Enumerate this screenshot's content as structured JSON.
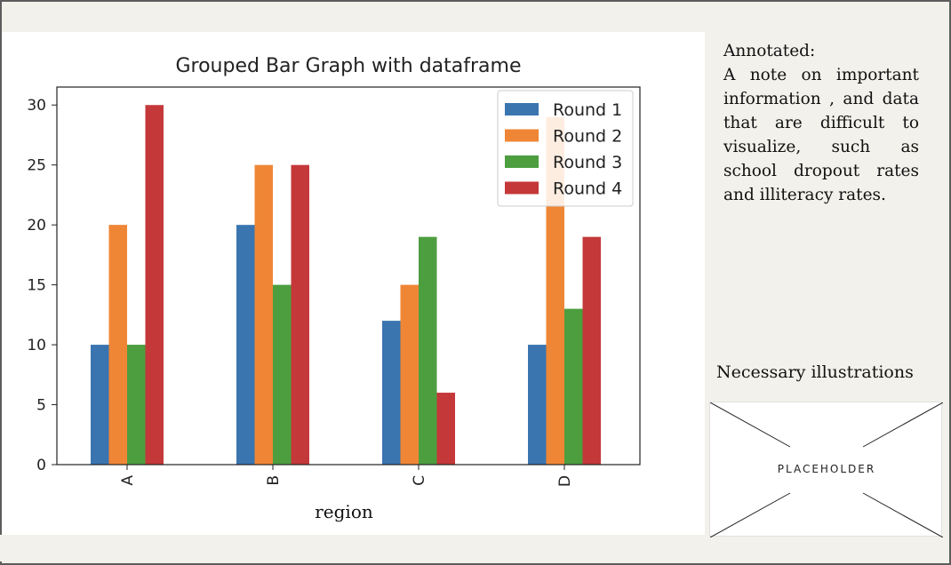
{
  "chart_data": {
    "type": "bar",
    "title": "Grouped Bar Graph with dataframe",
    "xlabel": "region",
    "ylabel": "",
    "categories": [
      "A",
      "B",
      "C",
      "D"
    ],
    "series": [
      {
        "name": "Round 1",
        "color": "#3a75b0",
        "values": [
          10,
          20,
          12,
          10
        ]
      },
      {
        "name": "Round 2",
        "color": "#ef8636",
        "values": [
          20,
          25,
          15,
          29
        ]
      },
      {
        "name": "Round 3",
        "color": "#4c9e3f",
        "values": [
          10,
          15,
          19,
          13
        ]
      },
      {
        "name": "Round 4",
        "color": "#c5383a",
        "values": [
          30,
          25,
          6,
          19
        ]
      }
    ],
    "ylim": [
      0,
      31.5
    ],
    "yticks": [
      0,
      5,
      10,
      15,
      20,
      25,
      30
    ],
    "legend_position": "top-right"
  },
  "annotation": {
    "heading": "Annotated:",
    "body": "A note on important information , and data that are difficult to visualize, such as school dropout rates and illiteracy rates."
  },
  "illustrations": {
    "label": "Necessary illustrations",
    "placeholder_text": "PLACEHOLDER"
  }
}
